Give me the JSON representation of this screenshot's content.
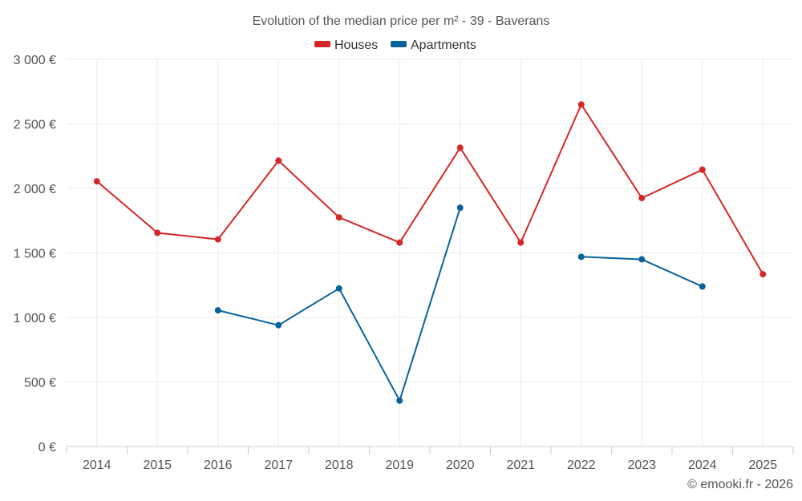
{
  "chart_data": {
    "type": "line",
    "title": "Evolution of the median price per m² - 39 - Baverans",
    "xlabel": "",
    "ylabel": "",
    "categories": [
      "2014",
      "2015",
      "2016",
      "2017",
      "2018",
      "2019",
      "2020",
      "2021",
      "2022",
      "2023",
      "2024",
      "2025"
    ],
    "y_ticks": [
      0,
      500,
      1000,
      1500,
      2000,
      2500,
      3000
    ],
    "y_tick_labels": [
      "0 €",
      "500 €",
      "1 000 €",
      "1 500 €",
      "2 000 €",
      "2 500 €",
      "3 000 €"
    ],
    "ylim": [
      0,
      3000
    ],
    "grid": true,
    "legend_position": "top-center",
    "series": [
      {
        "name": "Houses",
        "color": "#d62728",
        "values": [
          2055,
          1655,
          1605,
          2215,
          1775,
          1580,
          2315,
          1580,
          2650,
          1925,
          2145,
          1335
        ]
      },
      {
        "name": "Apartments",
        "color": "#08639c",
        "values": [
          null,
          null,
          1055,
          940,
          1225,
          355,
          1850,
          null,
          1470,
          1450,
          1240,
          null
        ]
      }
    ],
    "credit": "© emooki.fr - 2026"
  }
}
